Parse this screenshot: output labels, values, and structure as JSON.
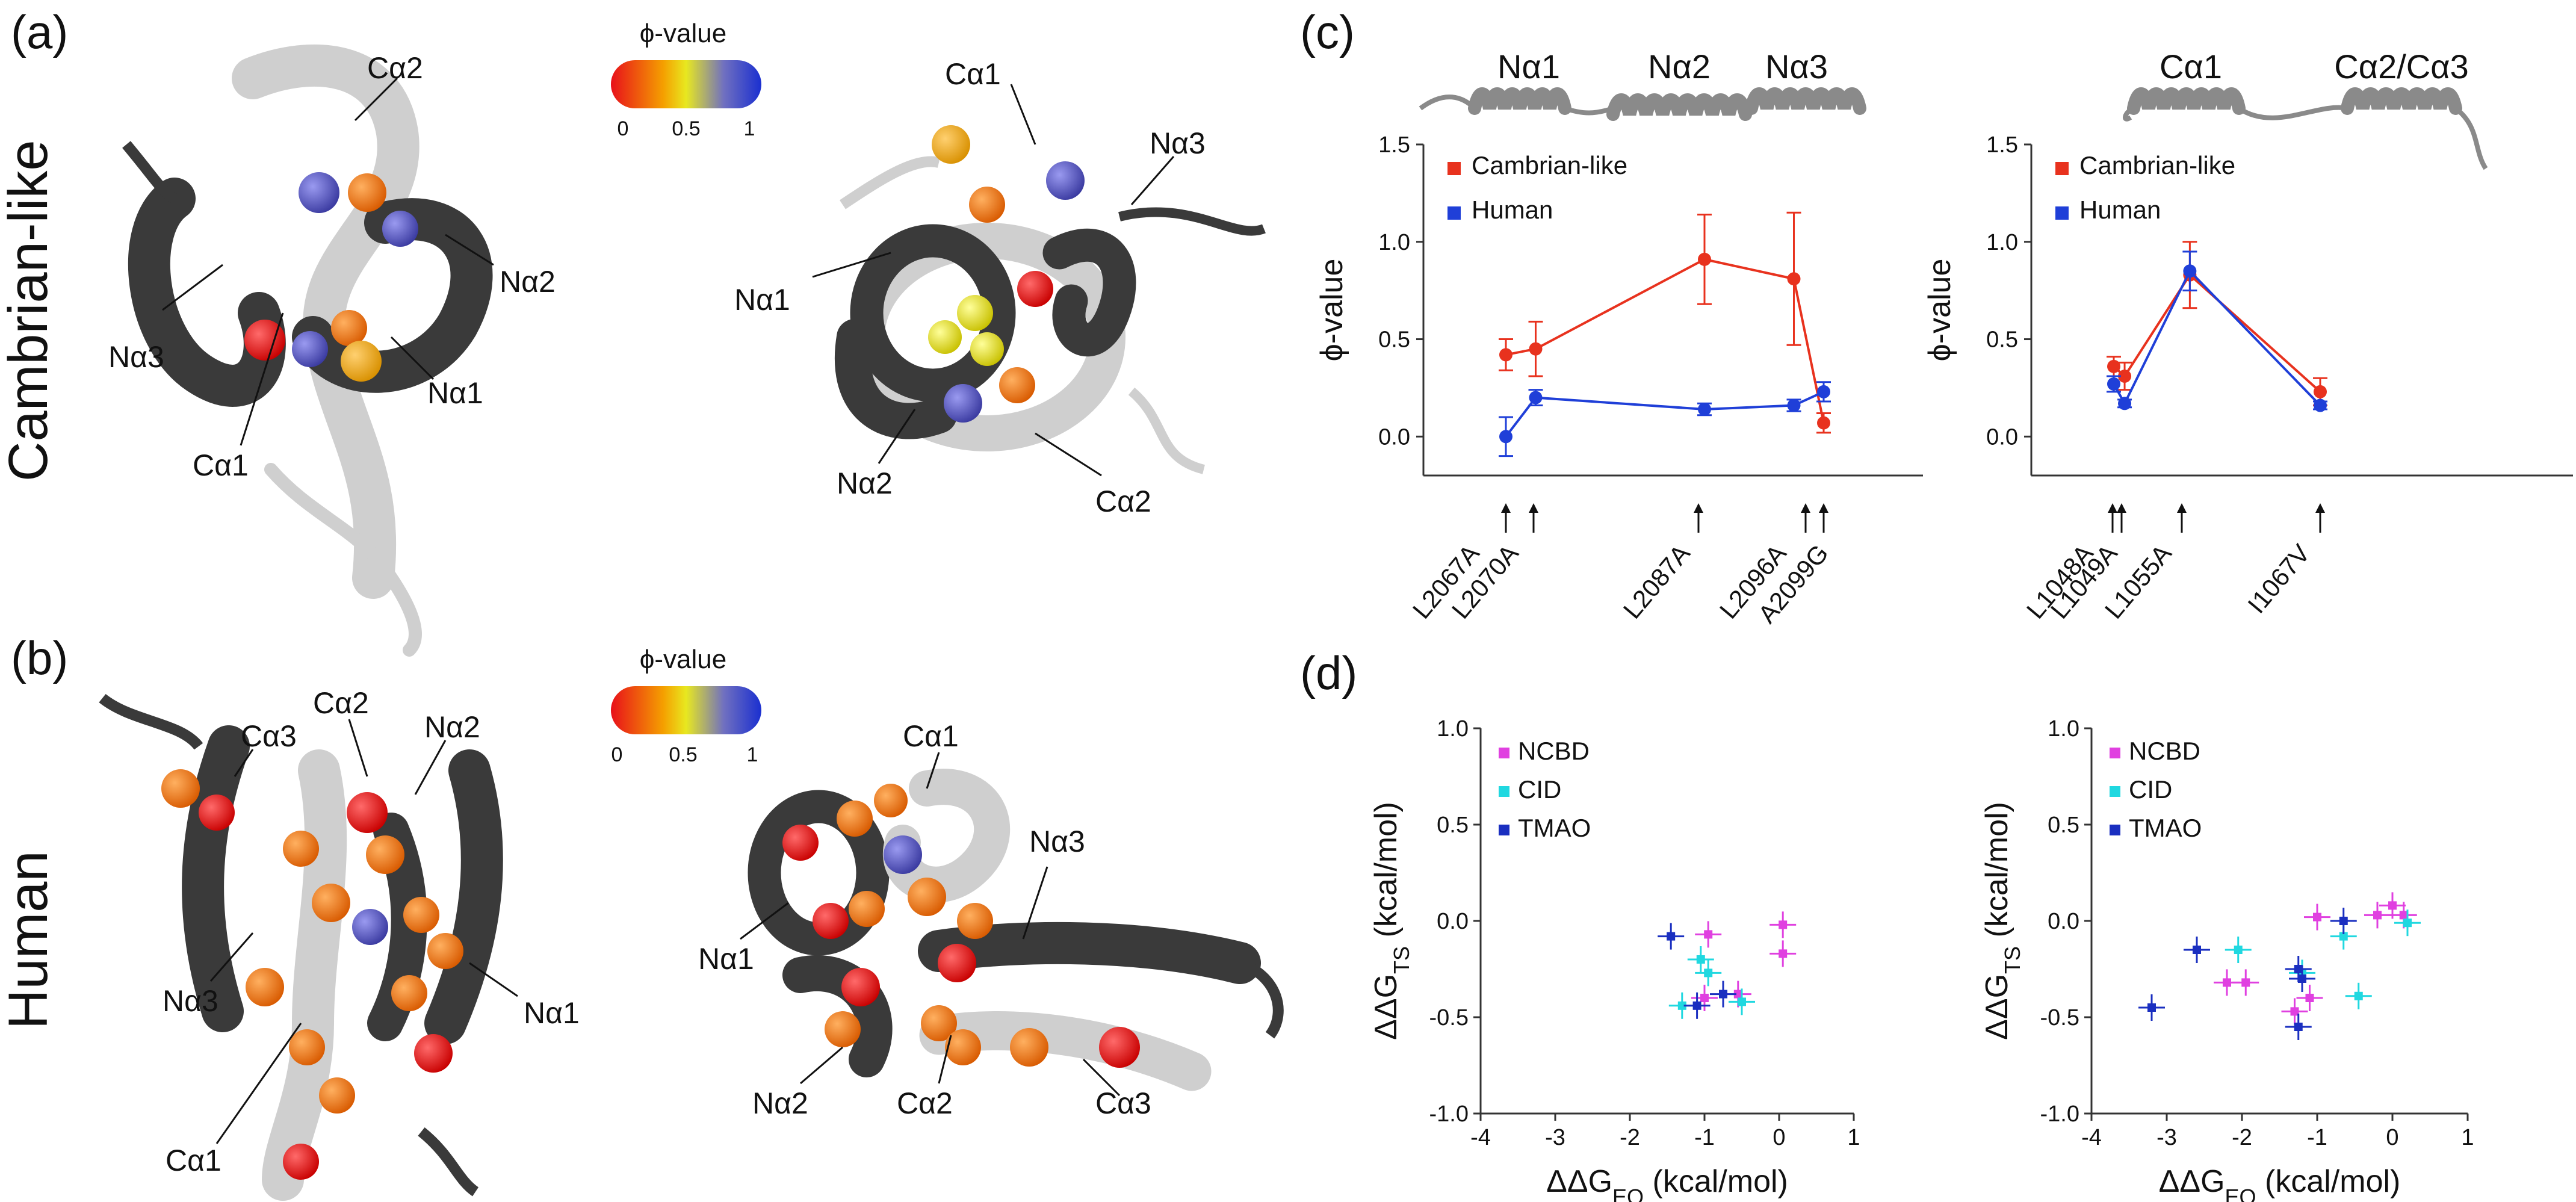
{
  "panels": {
    "a": "(a)",
    "b": "(b)",
    "c": "(c)",
    "d": "(d)"
  },
  "row_labels": {
    "top": "Cambrian-like",
    "bottom": "Human"
  },
  "phi_scale": {
    "title": "ϕ-value",
    "ticks": [
      "0",
      "0.5",
      "1"
    ]
  },
  "structure_labels": {
    "a_left": [
      "Cα2",
      "Nα3",
      "Nα2",
      "Nα1",
      "Cα1"
    ],
    "a_right": [
      "Cα1",
      "Nα3",
      "Nα1",
      "Nα2",
      "Cα2"
    ],
    "b_left": [
      "Cα2",
      "Cα3",
      "Nα2",
      "Nα3",
      "Nα1",
      "Cα1"
    ],
    "b_right": [
      "Cα1",
      "Nα3",
      "Nα1",
      "Nα2",
      "Cα2",
      "Cα3"
    ]
  },
  "colors": {
    "cambrian": "#e8321e",
    "human": "#1f3fd8",
    "ncbd": "#e040e0",
    "cid": "#20d8e0",
    "tmao": "#1a2fc0",
    "helix_dark": "#3a3a3a",
    "helix_light": "#cfcfcf"
  },
  "chart_data": [
    {
      "id": "c-left",
      "type": "line",
      "helix_labels": [
        "Nα1",
        "Nα2",
        "Nα3"
      ],
      "ylabel": "ϕ-value",
      "ylim": [
        -0.2,
        1.5
      ],
      "yticks": [
        "0.0",
        "0.5",
        "1.0",
        "1.5"
      ],
      "legend": [
        "Cambrian-like",
        "Human"
      ],
      "mutations": [
        "L2067A",
        "L2070A",
        "L2087A",
        "L2096A",
        "A2099G"
      ],
      "series": [
        {
          "name": "Cambrian-like",
          "x": [
            2067,
            2070,
            2087,
            2096,
            2099
          ],
          "values": [
            0.42,
            0.45,
            0.91,
            0.81,
            0.07
          ],
          "err": [
            0.08,
            0.14,
            0.23,
            0.34,
            0.05
          ]
        },
        {
          "name": "Human",
          "x": [
            2067,
            2070,
            2087,
            2096,
            2099
          ],
          "values": [
            0.0,
            0.2,
            0.14,
            0.16,
            0.23
          ],
          "err": [
            0.1,
            0.04,
            0.03,
            0.03,
            0.05
          ]
        }
      ]
    },
    {
      "id": "c-right",
      "type": "line",
      "helix_labels": [
        "Cα1",
        "Cα2/Cα3"
      ],
      "ylabel": "ϕ-value",
      "ylim": [
        -0.2,
        1.5
      ],
      "yticks": [
        "0.0",
        "0.5",
        "1.0",
        "1.5"
      ],
      "legend": [
        "Cambrian-like",
        "Human"
      ],
      "mutations": [
        "L1048A",
        "L1049A",
        "L1055A",
        "I1067V"
      ],
      "series": [
        {
          "name": "Cambrian-like",
          "x": [
            1048,
            1049,
            1055,
            1067
          ],
          "values": [
            0.36,
            0.31,
            0.83,
            0.23
          ],
          "err": [
            0.05,
            0.07,
            0.17,
            0.07
          ]
        },
        {
          "name": "Human",
          "x": [
            1048,
            1049,
            1055,
            1067
          ],
          "values": [
            0.27,
            0.17,
            0.85,
            0.16
          ],
          "err": [
            0.04,
            0.02,
            0.1,
            0.02
          ]
        }
      ]
    },
    {
      "id": "d-left",
      "type": "scatter",
      "xlabel": "ΔΔG",
      "xlabel_sub": "EQ",
      "xlabel_unit": " (kcal/mol)",
      "ylabel": "ΔΔG",
      "ylabel_sub": "TS",
      "ylabel_unit": " (kcal/mol)",
      "xlim": [
        -4,
        1
      ],
      "ylim": [
        -1.0,
        1.0
      ],
      "xticks": [
        "-4",
        "-3",
        "-2",
        "-1",
        "0",
        "1"
      ],
      "yticks": [
        "-1.0",
        "-0.5",
        "0.0",
        "0.5",
        "1.0"
      ],
      "legend": [
        "NCBD",
        "CID",
        "TMAO"
      ],
      "series": [
        {
          "name": "NCBD",
          "points": [
            [
              -0.95,
              -0.07
            ],
            [
              0.05,
              -0.02
            ],
            [
              0.05,
              -0.17
            ],
            [
              -1.0,
              -0.4
            ],
            [
              -0.55,
              -0.38
            ]
          ]
        },
        {
          "name": "CID",
          "points": [
            [
              -1.05,
              -0.2
            ],
            [
              -0.95,
              -0.27
            ],
            [
              -1.3,
              -0.44
            ],
            [
              -0.5,
              -0.42
            ]
          ]
        },
        {
          "name": "TMAO",
          "points": [
            [
              -1.45,
              -0.08
            ],
            [
              -1.1,
              -0.44
            ],
            [
              -0.75,
              -0.38
            ]
          ]
        }
      ]
    },
    {
      "id": "d-right",
      "type": "scatter",
      "xlabel": "ΔΔG",
      "xlabel_sub": "EQ",
      "xlabel_unit": " (kcal/mol)",
      "ylabel": "ΔΔG",
      "ylabel_sub": "TS",
      "ylabel_unit": " (kcal/mol)",
      "xlim": [
        -4,
        1
      ],
      "ylim": [
        -1.0,
        1.0
      ],
      "xticks": [
        "-4",
        "-3",
        "-2",
        "-1",
        "0",
        "1"
      ],
      "yticks": [
        "-1.0",
        "-0.5",
        "0.0",
        "0.5",
        "1.0"
      ],
      "legend": [
        "NCBD",
        "CID",
        "TMAO"
      ],
      "series": [
        {
          "name": "NCBD",
          "points": [
            [
              -2.2,
              -0.32
            ],
            [
              -1.95,
              -0.32
            ],
            [
              -1.1,
              -0.4
            ],
            [
              -1.3,
              -0.47
            ],
            [
              -1.0,
              0.02
            ],
            [
              -0.2,
              0.03
            ],
            [
              0.0,
              0.08
            ],
            [
              0.15,
              0.03
            ]
          ]
        },
        {
          "name": "CID",
          "points": [
            [
              -2.05,
              -0.15
            ],
            [
              -0.65,
              -0.08
            ],
            [
              -0.45,
              -0.39
            ],
            [
              0.2,
              -0.01
            ],
            [
              -1.2,
              -0.27
            ]
          ]
        },
        {
          "name": "TMAO",
          "points": [
            [
              -3.2,
              -0.45
            ],
            [
              -2.6,
              -0.15
            ],
            [
              -1.25,
              -0.25
            ],
            [
              -1.2,
              -0.3
            ],
            [
              -1.25,
              -0.55
            ],
            [
              -0.65,
              0.0
            ]
          ]
        }
      ]
    }
  ]
}
